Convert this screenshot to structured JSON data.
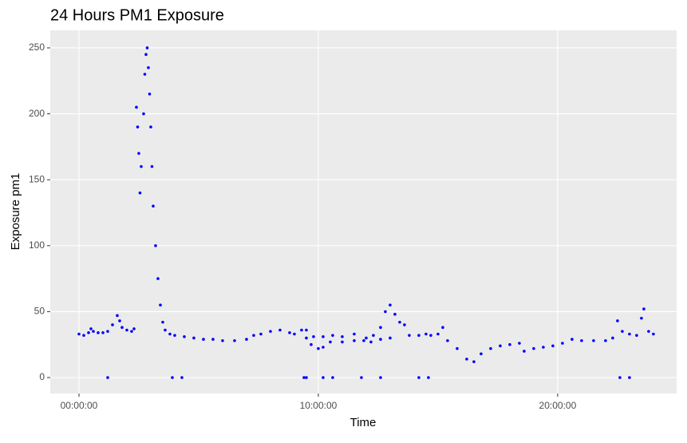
{
  "chart_data": {
    "type": "scatter",
    "title": "24 Hours PM1 Exposure",
    "x_label": "Time",
    "y_label": "Exposure pm1",
    "color": "#0000ff",
    "grid": true,
    "xlim": [
      -1.2,
      24.97
    ],
    "ylim": [
      -12.1,
      263.3
    ],
    "xticks": [
      {
        "value": 0,
        "label": "00:00:00"
      },
      {
        "value": 10,
        "label": "10:00:00"
      },
      {
        "value": 20,
        "label": "20:00:00"
      }
    ],
    "yticks": [
      0,
      50,
      100,
      150,
      200,
      250
    ],
    "x": [
      0,
      0.2,
      0.4,
      0.5,
      0.6,
      0.8,
      1.0,
      1.2,
      1.4,
      1.6,
      1.7,
      1.8,
      2.0,
      2.2,
      2.3,
      2.4,
      2.45,
      2.5,
      2.55,
      2.6,
      2.7,
      2.75,
      2.8,
      2.85,
      2.9,
      2.95,
      3.0,
      3.05,
      3.1,
      3.2,
      3.3,
      3.4,
      3.5,
      3.6,
      3.8,
      4.0,
      4.4,
      4.8,
      5.2,
      5.6,
      6.0,
      6.5,
      7.0,
      7.3,
      7.6,
      8.0,
      8.4,
      8.8,
      9.0,
      9.3,
      9.5,
      9.7,
      10.0,
      10.2,
      10.5,
      11.0,
      11.5,
      12.0,
      12.3,
      12.6,
      12.8,
      13.0,
      13.2,
      13.4,
      13.6,
      13.8,
      14.2,
      14.5,
      14.7,
      15.0,
      15.2,
      15.4,
      15.8,
      16.2,
      16.5,
      16.8,
      17.2,
      17.6,
      18.0,
      18.4,
      18.6,
      19.0,
      19.4,
      19.8,
      20.2,
      20.6,
      21.0,
      21.5,
      22.0,
      22.3,
      22.5,
      22.7,
      23.0,
      23.3,
      23.5,
      23.6,
      23.8,
      24.0,
      9.5,
      9.8,
      10.2,
      10.6,
      11.0,
      11.5,
      11.9,
      12.2,
      12.6,
      13.0,
      1.2,
      3.9,
      4.3,
      9.4,
      9.5,
      10.2,
      10.6,
      11.8,
      12.6,
      14.2,
      14.6,
      22.6,
      23.0
    ],
    "values": [
      33,
      32,
      34,
      37,
      35,
      34,
      34,
      35,
      40,
      47,
      43,
      38,
      36,
      35,
      37,
      205,
      190,
      170,
      140,
      160,
      200,
      230,
      245,
      250,
      235,
      215,
      190,
      160,
      130,
      100,
      75,
      55,
      42,
      36,
      33,
      32,
      31,
      30,
      29,
      29,
      28,
      28,
      29,
      32,
      33,
      35,
      36,
      34,
      33,
      36,
      30,
      25,
      22,
      23,
      27,
      27,
      28,
      30,
      32,
      38,
      50,
      55,
      48,
      42,
      40,
      32,
      32,
      33,
      32,
      33,
      38,
      28,
      22,
      14,
      12,
      18,
      22,
      24,
      25,
      26,
      20,
      22,
      23,
      24,
      26,
      29,
      28,
      28,
      28,
      30,
      43,
      35,
      33,
      32,
      45,
      52,
      35,
      33,
      36,
      31,
      31,
      32,
      31,
      33,
      28,
      27,
      29,
      30,
      0,
      0,
      0,
      0,
      0,
      0,
      0,
      0,
      0,
      0,
      0,
      0,
      0
    ]
  }
}
